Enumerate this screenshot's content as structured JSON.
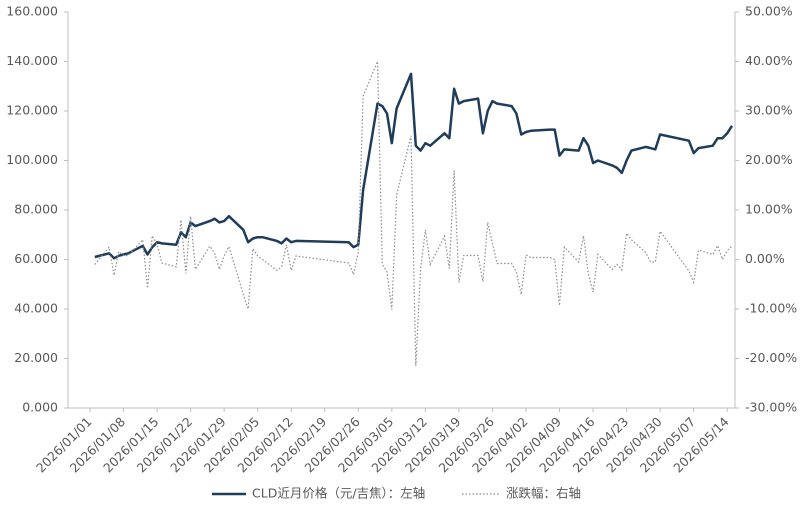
{
  "chart_data": {
    "type": "line",
    "x": [
      "2026/01/02",
      "2026/01/05",
      "2026/01/06",
      "2026/01/07",
      "2026/01/08",
      "2026/01/09",
      "2026/01/12",
      "2026/01/13",
      "2026/01/14",
      "2026/01/15",
      "2026/01/16",
      "2026/01/19",
      "2026/01/20",
      "2026/01/21",
      "2026/01/22",
      "2026/01/23",
      "2026/01/26",
      "2026/01/27",
      "2026/01/28",
      "2026/01/29",
      "2026/01/30",
      "2026/02/02",
      "2026/02/03",
      "2026/02/04",
      "2026/02/05",
      "2026/02/06",
      "2026/02/09",
      "2026/02/10",
      "2026/02/11",
      "2026/02/12",
      "2026/02/13",
      "2026/02/24",
      "2026/02/25",
      "2026/02/26",
      "2026/02/27",
      "2026/03/02",
      "2026/03/03",
      "2026/03/04",
      "2026/03/05",
      "2026/03/06",
      "2026/03/09",
      "2026/03/10",
      "2026/03/11",
      "2026/03/12",
      "2026/03/13",
      "2026/03/16",
      "2026/03/17",
      "2026/03/18",
      "2026/03/19",
      "2026/03/20",
      "2026/03/23",
      "2026/03/24",
      "2026/03/25",
      "2026/03/26",
      "2026/03/27",
      "2026/03/30",
      "2026/03/31",
      "2026/04/01",
      "2026/04/02",
      "2026/04/03",
      "2026/04/07",
      "2026/04/08",
      "2026/04/09",
      "2026/04/10",
      "2026/04/13",
      "2026/04/14",
      "2026/04/15",
      "2026/04/16",
      "2026/04/17",
      "2026/04/20",
      "2026/04/21",
      "2026/04/22",
      "2026/04/23",
      "2026/04/24",
      "2026/04/27",
      "2026/04/28",
      "2026/04/29",
      "2026/04/30",
      "2026/05/06",
      "2026/05/07",
      "2026/05/08",
      "2026/05/11",
      "2026/05/12",
      "2026/05/13",
      "2026/05/14",
      "2026/05/15"
    ],
    "series": [
      {
        "name": "CLD近月价格（元/吉焦）：左轴",
        "color": "#1f3c5a",
        "axis": "y",
        "values": [
          61.0,
          62.5,
          60.5,
          61.5,
          62.0,
          62.5,
          65.5,
          62.0,
          65.0,
          67.0,
          66.5,
          66.0,
          71.0,
          69.0,
          75.0,
          73.5,
          75.5,
          76.5,
          75.0,
          75.5,
          77.5,
          72.0,
          67.0,
          68.5,
          69.0,
          69.0,
          67.5,
          66.5,
          68.5,
          67.0,
          67.5,
          67.0,
          65.0,
          66.0,
          88.0,
          123.0,
          122.0,
          119.0,
          107.0,
          121.0,
          135.0,
          106.0,
          104.0,
          107.0,
          106.0,
          111.0,
          109.0,
          129.0,
          123.0,
          124.0,
          125.0,
          111.0,
          120.0,
          124.0,
          123.0,
          122.0,
          119.0,
          110.5,
          111.5,
          112.0,
          112.5,
          112.5,
          102.0,
          104.5,
          104.0,
          109.0,
          106.0,
          99.0,
          100.0,
          98.0,
          97.0,
          95.0,
          100.0,
          104.0,
          105.5,
          105.0,
          104.5,
          110.5,
          108.0,
          103.0,
          105.0,
          106.0,
          109.0,
          109.0,
          111.0,
          114.0
        ]
      },
      {
        "name": "涨跌幅：右轴",
        "color": "#8c8c8c",
        "axis": "y2",
        "values": [
          -1.0,
          2.5,
          -3.2,
          1.6,
          0.8,
          0.8,
          4.0,
          -5.8,
          4.8,
          3.1,
          -0.7,
          -1.5,
          8.0,
          -2.8,
          8.7,
          -2.0,
          2.7,
          1.3,
          -2.0,
          0.7,
          2.6,
          -7.1,
          -10.0,
          2.2,
          0.7,
          0.0,
          -2.2,
          -1.5,
          3.0,
          -2.2,
          0.7,
          -0.7,
          -3.0,
          1.5,
          33.0,
          40.0,
          -1.0,
          -2.5,
          -10.1,
          13.0,
          25.0,
          -21.5,
          -1.9,
          6.0,
          -1.0,
          4.7,
          -1.8,
          18.0,
          -4.6,
          0.8,
          0.8,
          -4.5,
          7.5,
          3.3,
          -0.8,
          -0.8,
          -2.5,
          -7.1,
          0.9,
          0.4,
          0.4,
          0.0,
          -9.3,
          2.5,
          -0.5,
          4.8,
          -2.8,
          -6.6,
          1.0,
          -2.0,
          -1.0,
          -2.1,
          5.3,
          4.0,
          1.4,
          -0.5,
          -0.5,
          5.7,
          -2.3,
          -4.6,
          1.9,
          1.0,
          2.8,
          0.0,
          1.8,
          2.7
        ]
      }
    ],
    "xlim": [
      "2026/01/01",
      "2026/05/15"
    ],
    "xticks": [
      "2026/01/01",
      "2026/01/08",
      "2026/01/15",
      "2026/01/22",
      "2026/01/29",
      "2026/02/05",
      "2026/02/12",
      "2026/02/19",
      "2026/02/26",
      "2026/03/05",
      "2026/03/12",
      "2026/03/19",
      "2026/03/26",
      "2026/04/02",
      "2026/04/09",
      "2026/04/16",
      "2026/04/23",
      "2026/04/30",
      "2026/05/07",
      "2026/05/14"
    ],
    "ylim": [
      0,
      160
    ],
    "yticks": [
      {
        "value": 0,
        "label": "0.000"
      },
      {
        "value": 20,
        "label": "20.000"
      },
      {
        "value": 40,
        "label": "40.000"
      },
      {
        "value": 60,
        "label": "60.000"
      },
      {
        "value": 80,
        "label": "80.000"
      },
      {
        "value": 100,
        "label": "100.000"
      },
      {
        "value": 120,
        "label": "120.000"
      },
      {
        "value": 140,
        "label": "140.000"
      },
      {
        "value": 160,
        "label": "160.000"
      }
    ],
    "y2lim": [
      -30,
      50
    ],
    "y2ticks": [
      {
        "value": -30,
        "label": "-30.00%"
      },
      {
        "value": -20,
        "label": "-20.00%"
      },
      {
        "value": -10,
        "label": "-10.00%"
      },
      {
        "value": 0,
        "label": "0.00%"
      },
      {
        "value": 10,
        "label": "10.00%"
      },
      {
        "value": 20,
        "label": "20.00%"
      },
      {
        "value": 30,
        "label": "30.00%"
      },
      {
        "value": 40,
        "label": "40.00%"
      },
      {
        "value": 50,
        "label": "50.00%"
      }
    ],
    "legend": "bottom"
  }
}
